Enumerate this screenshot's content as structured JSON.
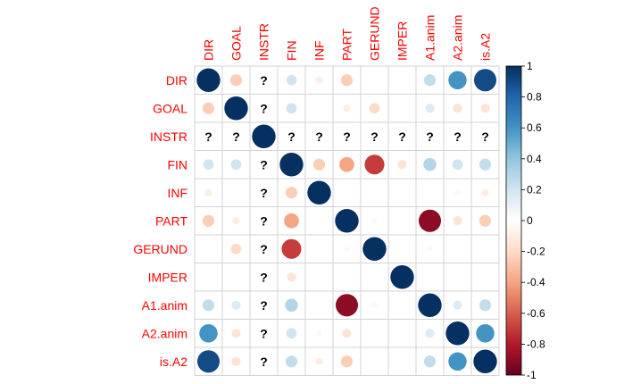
{
  "chart_data": {
    "type": "heatmap",
    "style": "corrplot-circle",
    "variables": [
      "DIR",
      "GOAL",
      "INSTR",
      "FIN",
      "INF",
      "PART",
      "GERUND",
      "IMPER",
      "A1.anim",
      "A2.anim",
      "is.A2"
    ],
    "missing_label": "?",
    "matrix": [
      [
        1,
        -0.25,
        null,
        0.2,
        -0.1,
        -0.25,
        0,
        0,
        0.25,
        0.6,
        0.9
      ],
      [
        -0.25,
        1,
        null,
        0.2,
        0,
        -0.1,
        -0.2,
        0,
        0.15,
        -0.15,
        -0.15
      ],
      [
        null,
        null,
        1,
        null,
        null,
        null,
        null,
        null,
        null,
        null,
        null
      ],
      [
        0.2,
        0.2,
        null,
        1,
        -0.25,
        -0.4,
        -0.7,
        -0.15,
        0.3,
        0.2,
        0.25
      ],
      [
        -0.1,
        0,
        null,
        -0.25,
        1,
        0,
        0,
        0,
        0,
        -0.05,
        -0.1
      ],
      [
        -0.25,
        -0.1,
        null,
        -0.4,
        0,
        1,
        -0.05,
        0,
        -0.9,
        -0.15,
        -0.25
      ],
      [
        0,
        -0.2,
        null,
        -0.7,
        0,
        -0.05,
        1,
        0,
        0.05,
        0,
        0
      ],
      [
        0,
        0,
        null,
        -0.15,
        0,
        0,
        0,
        1,
        0,
        0,
        0
      ],
      [
        0.25,
        0.15,
        null,
        0.3,
        0,
        -0.9,
        0.05,
        0,
        1,
        0.15,
        0.25
      ],
      [
        0.6,
        -0.15,
        null,
        0.2,
        -0.05,
        -0.15,
        0,
        0,
        0.15,
        1,
        0.6
      ],
      [
        0.9,
        -0.15,
        null,
        0.25,
        -0.1,
        -0.25,
        0,
        0,
        0.25,
        0.6,
        1
      ]
    ],
    "colorbar": {
      "range": [
        -1,
        1
      ],
      "ticks": [
        "1",
        "0.8",
        "0.6",
        "0.4",
        "0.2",
        "0",
        "-0.2",
        "-0.4",
        "-0.6",
        "-0.8",
        "-1"
      ],
      "colors": [
        "#67001F",
        "#B2182B",
        "#D6604D",
        "#F4A582",
        "#FDDBC7",
        "#FFFFFF",
        "#D1E5F0",
        "#92C5DE",
        "#4393C3",
        "#2166AC",
        "#053061"
      ]
    },
    "label_color": "#FF0000",
    "grid_color": "#D3D3D3"
  }
}
